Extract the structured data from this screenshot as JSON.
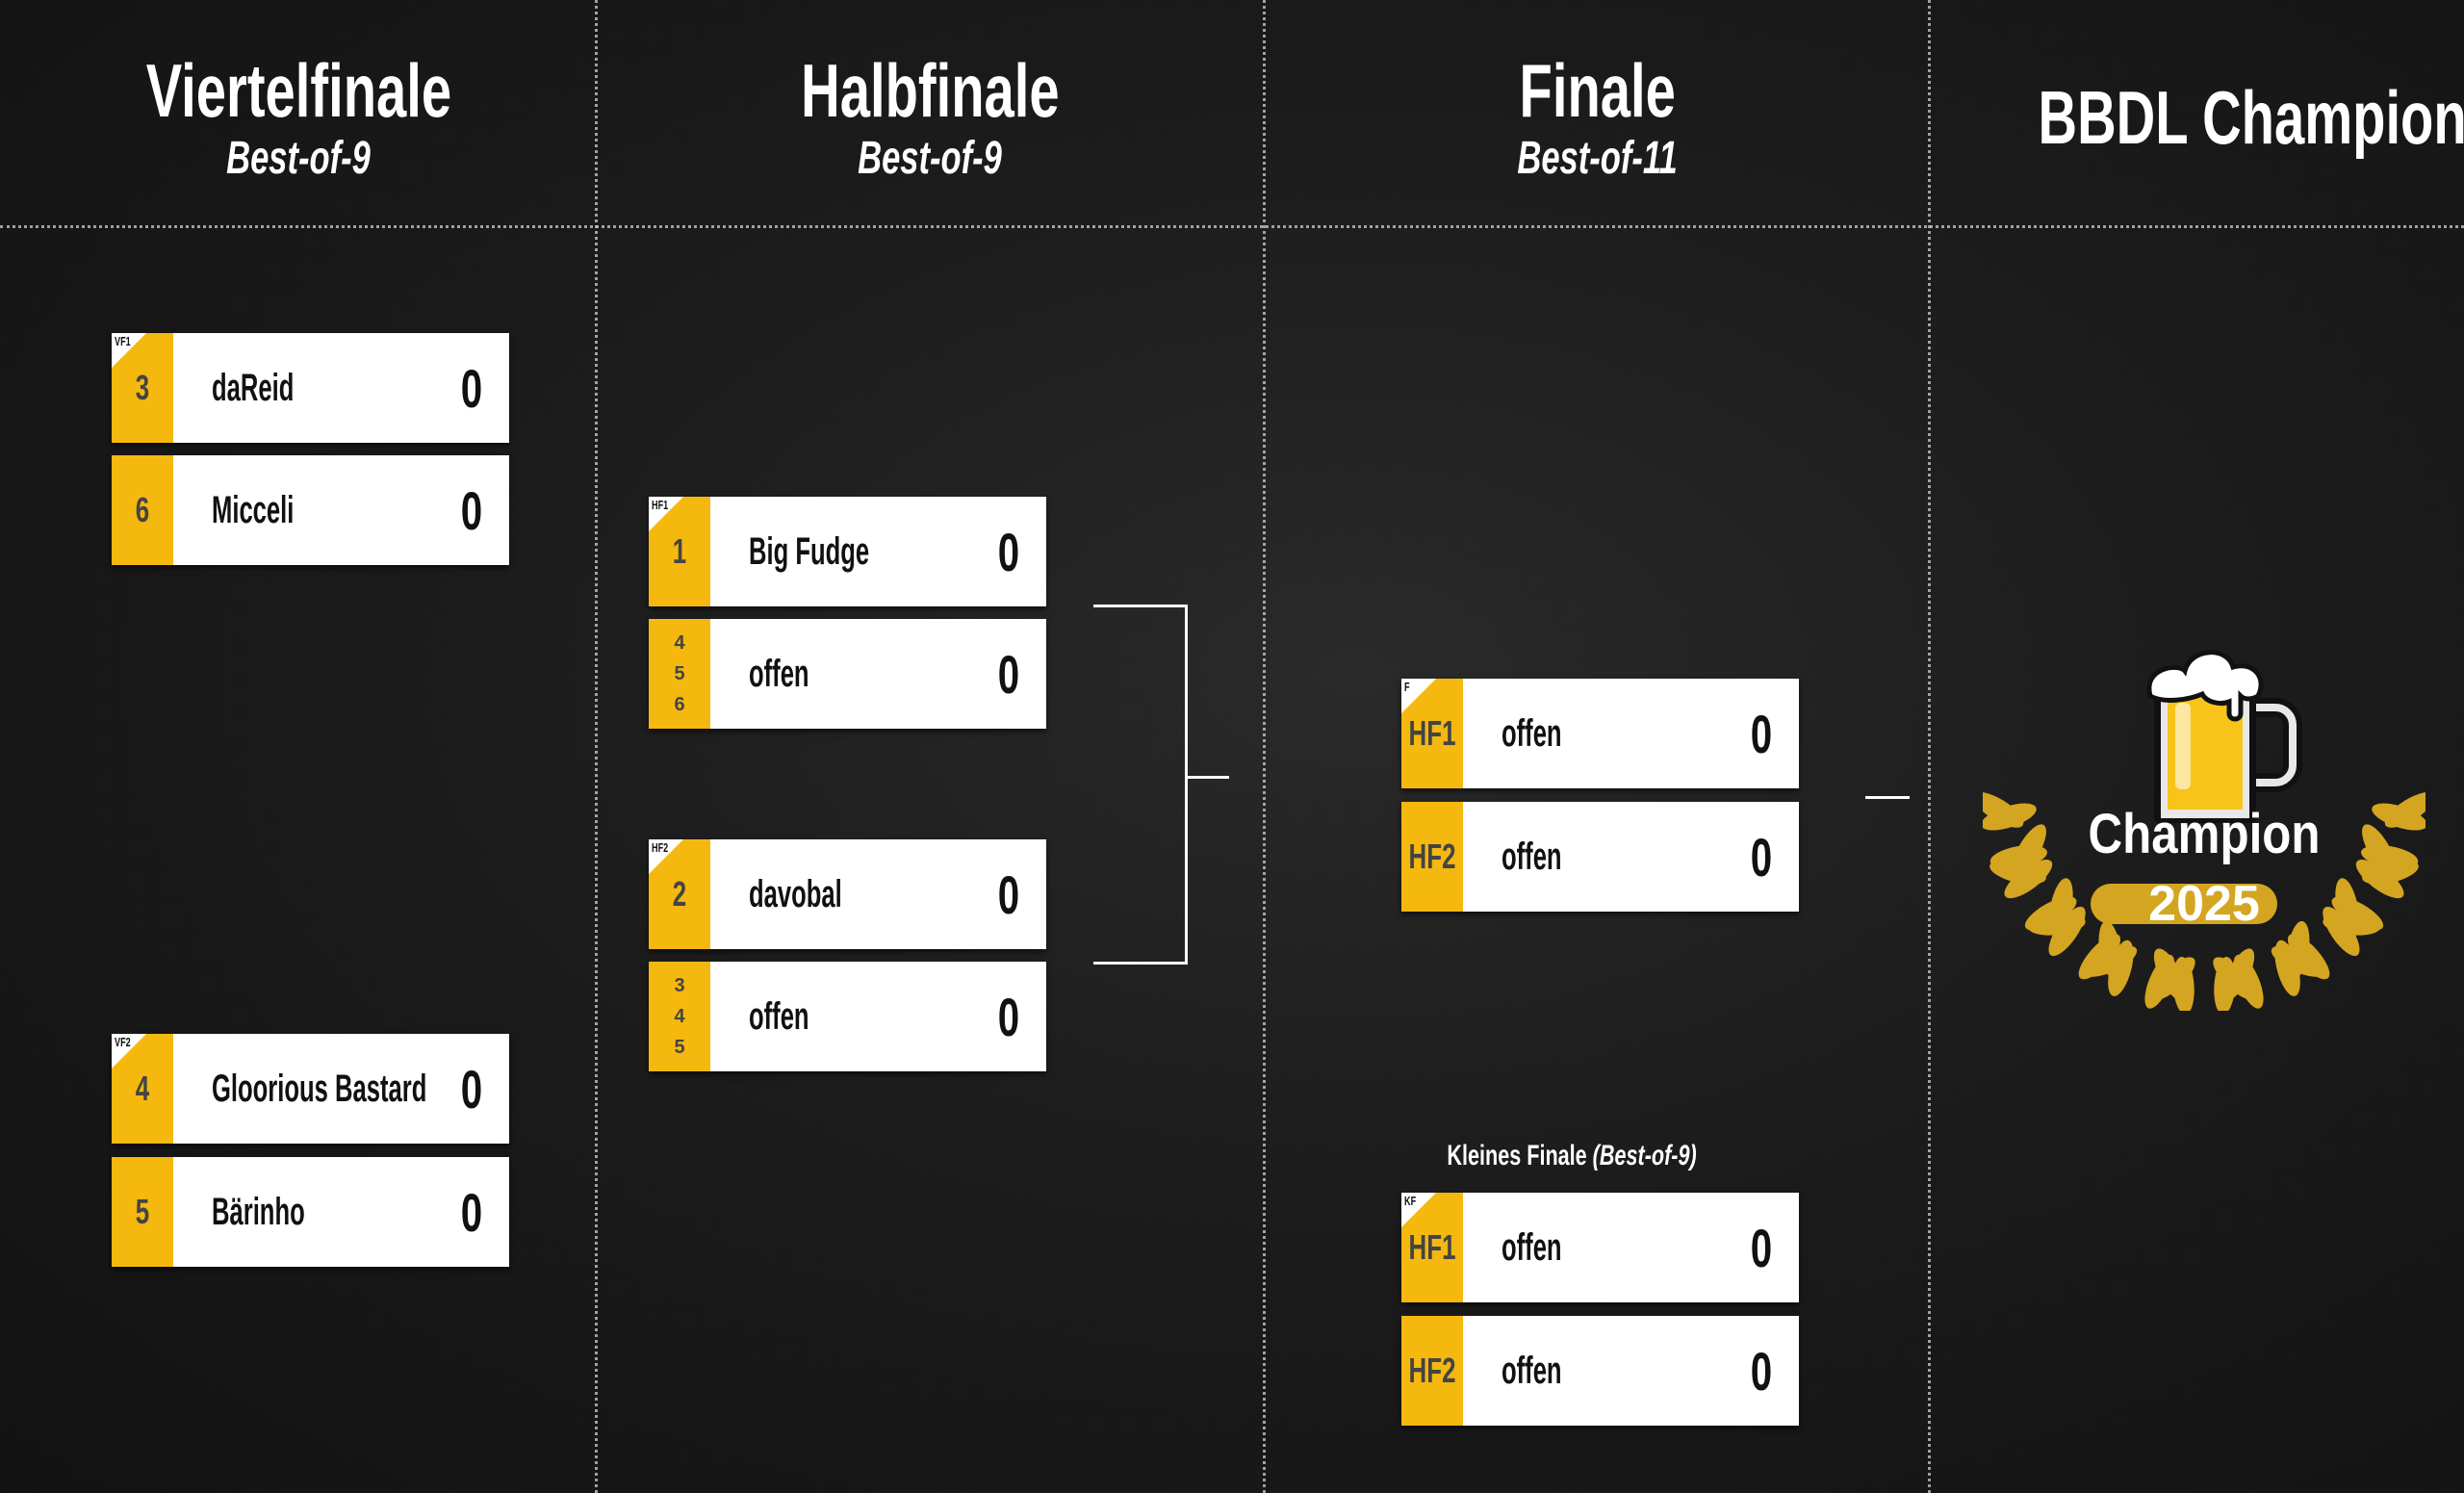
{
  "columns": [
    {
      "title": "Viertelfinale",
      "subtitle": "Best-of-9"
    },
    {
      "title": "Halbfinale",
      "subtitle": "Best-of-9"
    },
    {
      "title": "Finale",
      "subtitle": "Best-of-11"
    },
    {
      "title": "BBDL Champion"
    }
  ],
  "matches": {
    "vf1": {
      "tag": "VF1",
      "players": [
        {
          "seed": "3",
          "name": "daReid",
          "score": "0"
        },
        {
          "seed": "6",
          "name": "Micceli",
          "score": "0"
        }
      ]
    },
    "vf2": {
      "tag": "VF2",
      "players": [
        {
          "seed": "4",
          "name": "Gloorious Bastard",
          "score": "0"
        },
        {
          "seed": "5",
          "name": "Bärinho",
          "score": "0"
        }
      ]
    },
    "hf1": {
      "tag": "HF1",
      "players": [
        {
          "seed": "1",
          "name": "Big Fudge",
          "score": "0"
        },
        {
          "seed_lines": [
            "4",
            "5",
            "6"
          ],
          "name": "offen",
          "score": "0"
        }
      ]
    },
    "hf2": {
      "tag": "HF2",
      "players": [
        {
          "seed": "2",
          "name": "davobal",
          "score": "0"
        },
        {
          "seed_lines": [
            "3",
            "4",
            "5"
          ],
          "name": "offen",
          "score": "0"
        }
      ]
    },
    "f": {
      "tag": "F",
      "players": [
        {
          "seed": "HF1",
          "name": "offen",
          "score": "0"
        },
        {
          "seed": "HF2",
          "name": "offen",
          "score": "0"
        }
      ]
    },
    "kf": {
      "tag": "KF",
      "title": "Kleines Finale",
      "subtitle": "(Best-of-9)",
      "players": [
        {
          "seed": "HF1",
          "name": "offen",
          "score": "0"
        },
        {
          "seed": "HF2",
          "name": "offen",
          "score": "0"
        }
      ]
    }
  },
  "champion": {
    "label": "Champion",
    "year": "2025",
    "icon": "beer-mug-icon"
  },
  "colors": {
    "accent": "#f4b80e",
    "laurel": "#d4a520",
    "background": "#1c1c1c"
  }
}
